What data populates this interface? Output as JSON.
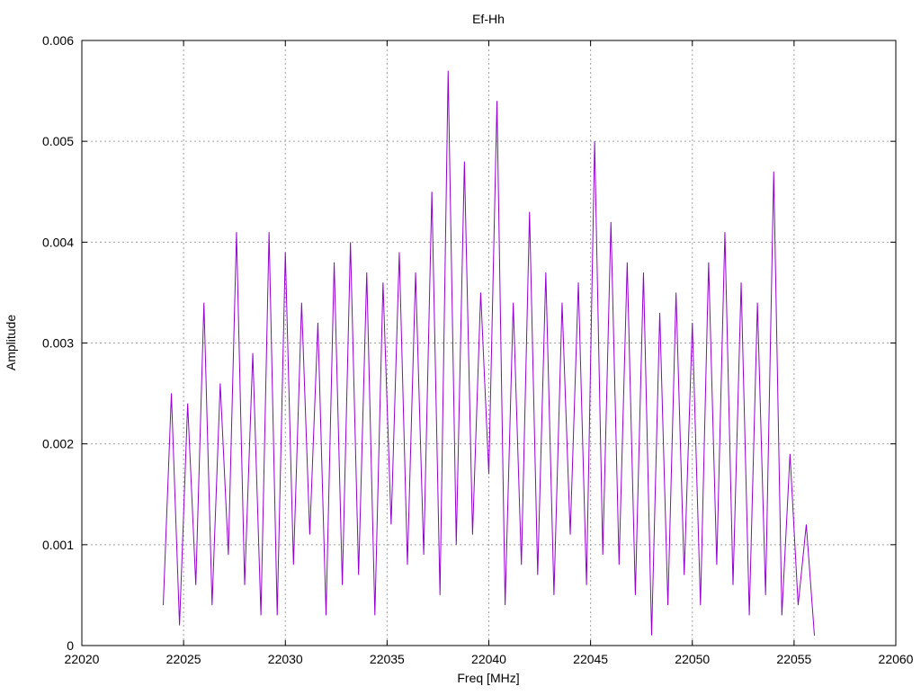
{
  "chart_data": {
    "type": "line",
    "title": "Ef-Hh",
    "xlabel": "Freq [MHz]",
    "ylabel": "Amplitude",
    "xlim": [
      22020,
      22060
    ],
    "ylim": [
      0,
      0.006
    ],
    "x_ticks": [
      22020,
      22025,
      22030,
      22035,
      22040,
      22045,
      22050,
      22055,
      22060
    ],
    "x_tick_labels": [
      "22020",
      "22025",
      "22030",
      "22035",
      "22040",
      "22045",
      "22050",
      "22055",
      "22060"
    ],
    "y_ticks": [
      0,
      0.001,
      0.002,
      0.003,
      0.004,
      0.005,
      0.006
    ],
    "y_tick_labels": [
      "0",
      "0.001",
      "0.002",
      "0.003",
      "0.004",
      "0.005",
      "0.006"
    ],
    "grid": true,
    "legend": "none",
    "series": [
      {
        "color": "#9400d3",
        "x": [
          22024.0,
          22024.4,
          22024.8,
          22025.2,
          22025.6,
          22026.0,
          22026.4,
          22026.8,
          22027.2,
          22027.6,
          22028.0,
          22028.4,
          22028.8,
          22029.2,
          22029.6,
          22030.0,
          22030.4,
          22030.8,
          22031.2,
          22031.6,
          22032.0,
          22032.4,
          22032.8,
          22033.2,
          22033.6,
          22034.0,
          22034.4,
          22034.8,
          22035.2,
          22035.6,
          22036.0,
          22036.4,
          22036.8,
          22037.2,
          22037.6,
          22038.0,
          22038.4,
          22038.8,
          22039.2,
          22039.6,
          22040.0,
          22040.4,
          22040.8,
          22041.2,
          22041.6,
          22042.0,
          22042.4,
          22042.8,
          22043.2,
          22043.6,
          22044.0,
          22044.4,
          22044.8,
          22045.2,
          22045.6,
          22046.0,
          22046.4,
          22046.8,
          22047.2,
          22047.6,
          22048.0,
          22048.4,
          22048.8,
          22049.2,
          22049.6,
          22050.0,
          22050.4,
          22050.8,
          22051.2,
          22051.6,
          22052.0,
          22052.4,
          22052.8,
          22053.2,
          22053.6,
          22054.0,
          22054.4,
          22054.8,
          22055.2,
          22055.6,
          22056.0
        ],
        "y": [
          0.0004,
          0.0025,
          0.0002,
          0.0024,
          0.0006,
          0.0034,
          0.0004,
          0.0026,
          0.0009,
          0.0041,
          0.0006,
          0.0029,
          0.0003,
          0.0041,
          0.0003,
          0.0039,
          0.0008,
          0.0034,
          0.0011,
          0.0032,
          0.0003,
          0.0038,
          0.0006,
          0.004,
          0.0007,
          0.0037,
          0.0003,
          0.0036,
          0.0012,
          0.0039,
          0.0008,
          0.0037,
          0.0009,
          0.0045,
          0.0005,
          0.0057,
          0.001,
          0.0048,
          0.0011,
          0.0035,
          0.0017,
          0.0054,
          0.0004,
          0.0034,
          0.0008,
          0.0043,
          0.0007,
          0.0037,
          0.0005,
          0.0034,
          0.0011,
          0.0036,
          0.0006,
          0.005,
          0.0009,
          0.0042,
          0.0008,
          0.0038,
          0.0005,
          0.0037,
          0.0001,
          0.0033,
          0.0004,
          0.0035,
          0.0007,
          0.0032,
          0.0004,
          0.0038,
          0.0008,
          0.0041,
          0.0006,
          0.0036,
          0.0003,
          0.0034,
          0.0005,
          0.0047,
          0.0003,
          0.0019,
          0.0004,
          0.0012,
          0.0001
        ]
      }
    ]
  }
}
